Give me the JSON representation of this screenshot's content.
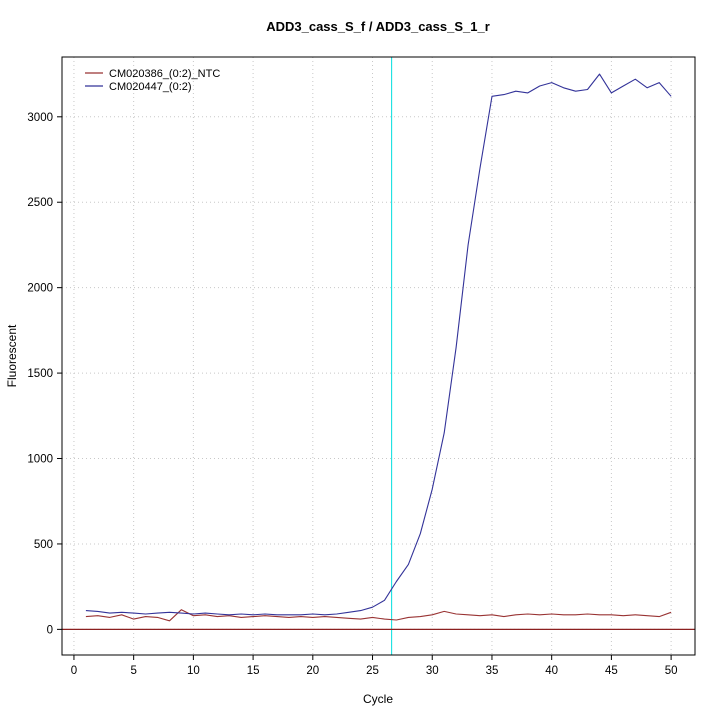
{
  "figure": {
    "title": "ADD3_cass_S_f / ADD3_cass_S_1_r"
  },
  "chart_data": {
    "type": "line",
    "title": "ADD3_cass_S_f / ADD3_cass_S_1_r",
    "xlabel": "Cycle",
    "ylabel": "Fluorescent",
    "xlim": [
      -1,
      52
    ],
    "ylim": [
      -150,
      3350
    ],
    "xticks": [
      0,
      5,
      10,
      15,
      20,
      25,
      30,
      35,
      40,
      45,
      50
    ],
    "yticks": [
      0,
      500,
      1000,
      1500,
      2000,
      2500,
      3000
    ],
    "grid": "dotted",
    "grid_color": "#c8c8c8",
    "legend_position": "top-left",
    "x": [
      1,
      2,
      3,
      4,
      5,
      6,
      7,
      8,
      9,
      10,
      11,
      12,
      13,
      14,
      15,
      16,
      17,
      18,
      19,
      20,
      21,
      22,
      23,
      24,
      25,
      26,
      27,
      28,
      29,
      30,
      31,
      32,
      33,
      34,
      35,
      36,
      37,
      38,
      39,
      40,
      41,
      42,
      43,
      44,
      45,
      46,
      47,
      48,
      49,
      50
    ],
    "series": [
      {
        "name": "CM020386_(0:2)_NTC",
        "color": "#993333",
        "values": [
          75,
          80,
          70,
          85,
          60,
          75,
          70,
          50,
          115,
          80,
          85,
          75,
          80,
          70,
          75,
          80,
          75,
          70,
          75,
          70,
          75,
          70,
          65,
          60,
          70,
          60,
          55,
          70,
          75,
          85,
          105,
          90,
          85,
          80,
          85,
          75,
          85,
          90,
          85,
          90,
          85,
          85,
          90,
          85,
          85,
          80,
          85,
          80,
          75,
          100
        ]
      },
      {
        "name": "CM020447_(0:2)",
        "color": "#333399",
        "values": [
          110,
          105,
          95,
          100,
          95,
          90,
          95,
          100,
          95,
          90,
          95,
          90,
          85,
          90,
          85,
          90,
          85,
          85,
          85,
          90,
          85,
          90,
          100,
          110,
          130,
          170,
          280,
          380,
          560,
          820,
          1150,
          1650,
          2250,
          2700,
          3120,
          3130,
          3150,
          3140,
          3180,
          3200,
          3170,
          3150,
          3160,
          3250,
          3140,
          3180,
          3220,
          3170,
          3200,
          3120
        ]
      }
    ],
    "annotations": {
      "threshold_line_y": 0,
      "threshold_line_color": "#8b2020",
      "ct_line_x": 26.6,
      "ct_line_color": "#00dede"
    }
  }
}
